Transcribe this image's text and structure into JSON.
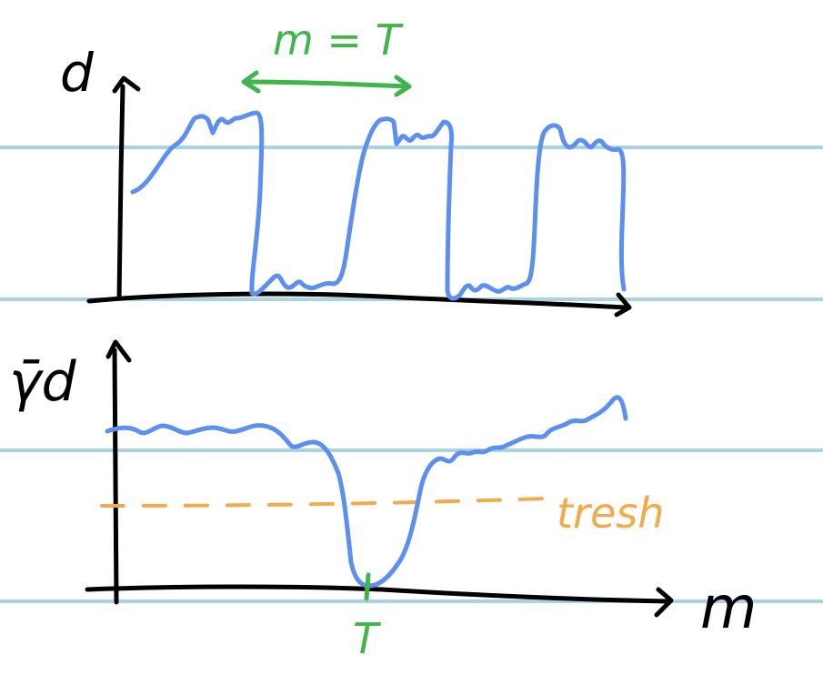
{
  "colors": {
    "ruled_line": "#a9d3e3",
    "axis": "#000000",
    "signal": "#5b8ff0",
    "period": "#3fb54a",
    "threshold": "#f4a94a"
  },
  "top_plot": {
    "y_axis_label": "d",
    "period_annotation": "m = T"
  },
  "bottom_plot": {
    "y_axis_label": "γ̄d",
    "threshold_label": "tresh",
    "x_axis_label": "m",
    "minimum_marker_label": "T"
  }
}
